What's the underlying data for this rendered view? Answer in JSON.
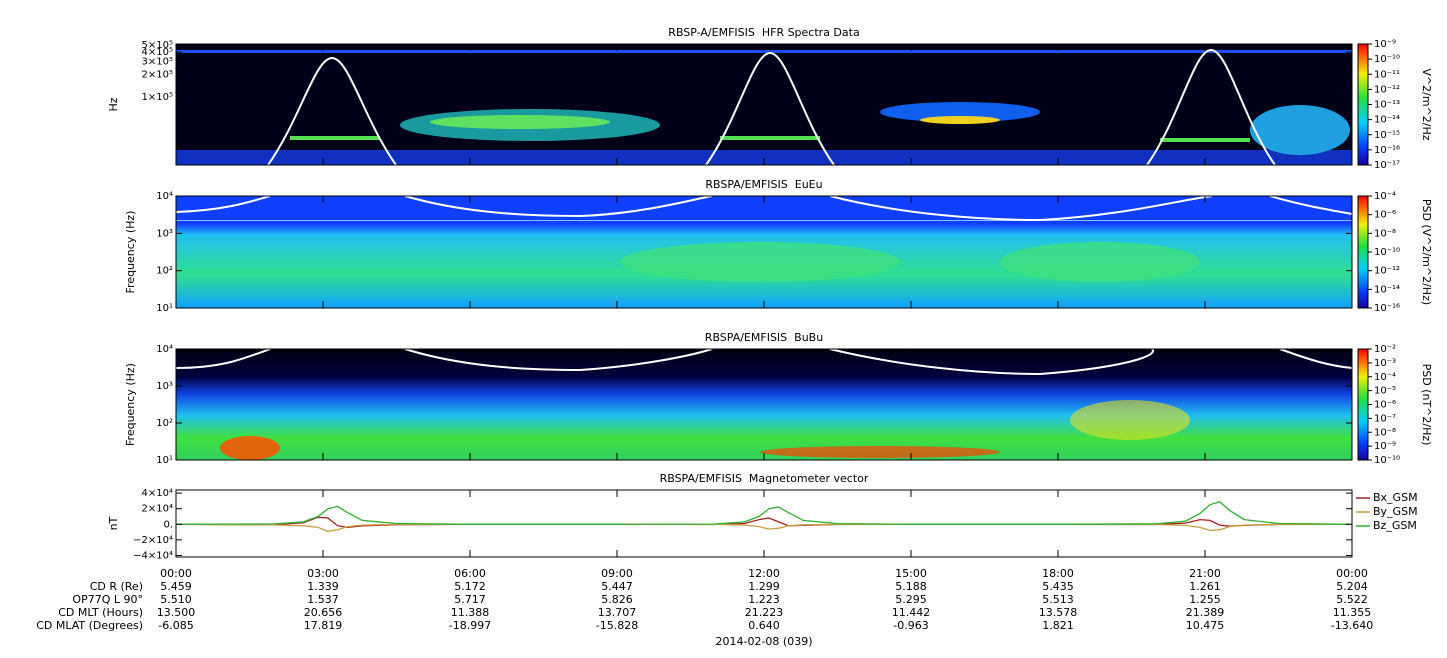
{
  "chart_data": [
    {
      "type": "spectrogram",
      "title": "RBSP-A/EMFISIS  HFR Spectra Data",
      "ylabel": "Hz",
      "ylog": true,
      "ylim": [
        12200,
        515000
      ],
      "yticks": [
        {
          "value": 500000,
          "label": "5×10⁵"
        },
        {
          "value": 400000,
          "label": "4×10⁵"
        },
        {
          "value": 300000,
          "label": "3×10⁵"
        },
        {
          "value": 200000,
          "label": "2×10⁵"
        },
        {
          "value": 100000,
          "label": "1×10⁵"
        }
      ],
      "zlabel": "V^2/m^2/Hz",
      "zlim": [
        1e-17,
        1e-09
      ],
      "zticks": [
        {
          "value": 1e-09,
          "label": "10⁻⁹"
        },
        {
          "value": 1e-10,
          "label": "10⁻¹⁰"
        },
        {
          "value": 1e-11,
          "label": "10⁻¹¹"
        },
        {
          "value": 1e-12,
          "label": "10⁻¹²"
        },
        {
          "value": 1e-13,
          "label": "10⁻¹³"
        },
        {
          "value": 1e-14,
          "label": "10⁻¹⁴"
        },
        {
          "value": 1e-15,
          "label": "10⁻¹⁵"
        },
        {
          "value": 1e-16,
          "label": "10⁻¹⁶"
        },
        {
          "value": 1e-17,
          "label": "10⁻¹⁷"
        }
      ]
    },
    {
      "type": "spectrogram",
      "title": "RBSPA/EMFISIS  EuEu",
      "ylabel": "Frequency (Hz)",
      "ylog": true,
      "ylim": [
        10,
        10000
      ],
      "yticks": [
        {
          "value": 10000,
          "label": "10⁴"
        },
        {
          "value": 1000,
          "label": "10³"
        },
        {
          "value": 100,
          "label": "10²"
        },
        {
          "value": 10,
          "label": "10¹"
        }
      ],
      "zlabel": "PSD (V^2/m^2/Hz)",
      "zlim": [
        1e-16,
        0.0001
      ],
      "zticks": [
        {
          "value": 0.0001,
          "label": "10⁻⁴"
        },
        {
          "value": 1e-06,
          "label": "10⁻⁶"
        },
        {
          "value": 1e-08,
          "label": "10⁻⁸"
        },
        {
          "value": 1e-10,
          "label": "10⁻¹⁰"
        },
        {
          "value": 1e-12,
          "label": "10⁻¹²"
        },
        {
          "value": 1e-14,
          "label": "10⁻¹⁴"
        },
        {
          "value": 1e-16,
          "label": "10⁻¹⁶"
        }
      ]
    },
    {
      "type": "spectrogram",
      "title": "RBSPA/EMFISIS  BuBu",
      "ylabel": "Frequency (Hz)",
      "ylog": true,
      "ylim": [
        10,
        10000
      ],
      "yticks": [
        {
          "value": 10000,
          "label": "10⁴"
        },
        {
          "value": 1000,
          "label": "10³"
        },
        {
          "value": 100,
          "label": "10²"
        },
        {
          "value": 10,
          "label": "10¹"
        }
      ],
      "zlabel": "PSD (nT^2/Hz)",
      "zlim": [
        1e-10,
        0.01
      ],
      "zticks": [
        {
          "value": 0.01,
          "label": "10⁻²"
        },
        {
          "value": 0.001,
          "label": "10⁻³"
        },
        {
          "value": 0.0001,
          "label": "10⁻⁴"
        },
        {
          "value": 1e-05,
          "label": "10⁻⁵"
        },
        {
          "value": 1e-06,
          "label": "10⁻⁶"
        },
        {
          "value": 1e-07,
          "label": "10⁻⁷"
        },
        {
          "value": 1e-08,
          "label": "10⁻⁸"
        },
        {
          "value": 1e-09,
          "label": "10⁻⁹"
        },
        {
          "value": 1e-10,
          "label": "10⁻¹⁰"
        }
      ]
    },
    {
      "type": "line",
      "title": "RBSPA/EMFISIS  Magnetometer vector",
      "ylabel": "nT",
      "ylim": [
        -42000,
        44000
      ],
      "yticks": [
        {
          "value": 40000,
          "label": "4×10⁴"
        },
        {
          "value": 20000,
          "label": "2×10⁴"
        },
        {
          "value": 0,
          "label": "0."
        },
        {
          "value": -20000,
          "label": "−2×10⁴"
        },
        {
          "value": -40000,
          "label": "−4×10⁴"
        }
      ],
      "xlim": [
        0,
        24
      ],
      "xticks": [
        {
          "value": 0,
          "label": "00:00"
        },
        {
          "value": 3,
          "label": "03:00"
        },
        {
          "value": 6,
          "label": "06:00"
        },
        {
          "value": 9,
          "label": "09:00"
        },
        {
          "value": 12,
          "label": "12:00"
        },
        {
          "value": 15,
          "label": "15:00"
        },
        {
          "value": 18,
          "label": "18:00"
        },
        {
          "value": 21,
          "label": "21:00"
        },
        {
          "value": 24,
          "label": "00:00"
        }
      ],
      "x": [
        0,
        2,
        2.6,
        2.9,
        3.1,
        3.3,
        3.5,
        3.8,
        4.5,
        6,
        9,
        11,
        11.6,
        11.9,
        12.1,
        12.3,
        12.5,
        12.8,
        13.5,
        15,
        18,
        20,
        20.6,
        20.9,
        21.1,
        21.3,
        21.5,
        21.8,
        22.5,
        24
      ],
      "series": [
        {
          "name": "Bx_GSM",
          "color": "#a52020",
          "values": [
            0,
            -500,
            2000,
            9000,
            8000,
            -2000,
            -4000,
            -2000,
            -500,
            0,
            0,
            -300,
            1000,
            6000,
            8000,
            3000,
            -2000,
            -1500,
            -300,
            0,
            0,
            -300,
            1500,
            6000,
            5000,
            -1000,
            -2500,
            -1500,
            -300,
            0
          ]
        },
        {
          "name": "By_GSM",
          "color": "#c8a040",
          "values": [
            0,
            -800,
            -2000,
            -4000,
            -9000,
            -7000,
            -3000,
            -1000,
            -200,
            0,
            0,
            -200,
            -1000,
            -3000,
            -6000,
            -5000,
            -2000,
            -700,
            -100,
            0,
            0,
            -300,
            -1500,
            -4000,
            -8000,
            -7000,
            -3000,
            -1000,
            -200,
            0
          ]
        },
        {
          "name": "Bz_GSM",
          "color": "#30b030",
          "values": [
            0,
            500,
            3000,
            10000,
            20000,
            23000,
            15000,
            5000,
            1000,
            0,
            0,
            300,
            3000,
            10000,
            20000,
            22000,
            15000,
            5000,
            800,
            0,
            0,
            500,
            4000,
            14000,
            25000,
            29000,
            18000,
            6000,
            1000,
            0
          ]
        }
      ]
    }
  ],
  "ephemeris": {
    "rows": [
      {
        "label": "CD R (Re)",
        "values": [
          "5.459",
          "1.339",
          "5.172",
          "5.447",
          "1.299",
          "5.188",
          "5.435",
          "1.261",
          "5.204"
        ]
      },
      {
        "label": "OP77Q L 90°",
        "values": [
          "5.510",
          "1.537",
          "5.717",
          "5.826",
          "1.223",
          "5.295",
          "5.513",
          "1.255",
          "5.522"
        ]
      },
      {
        "label": "CD MLT (Hours)",
        "values": [
          "13.500",
          "20.656",
          "11.388",
          "13.707",
          "21.223",
          "11.442",
          "13.578",
          "21.389",
          "11.355"
        ]
      },
      {
        "label": "CD MLAT (Degrees)",
        "values": [
          "-6.085",
          "17.819",
          "-18.997",
          "-15.828",
          "0.640",
          "-0.963",
          "1.821",
          "10.475",
          "-13.640"
        ]
      }
    ],
    "date": "2014-02-08 (039)"
  }
}
